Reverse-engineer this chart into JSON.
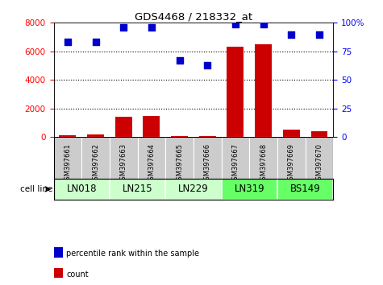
{
  "title": "GDS4468 / 218332_at",
  "samples": [
    "GSM397661",
    "GSM397662",
    "GSM397663",
    "GSM397664",
    "GSM397665",
    "GSM397666",
    "GSM397667",
    "GSM397668",
    "GSM397669",
    "GSM397670"
  ],
  "counts": [
    150,
    200,
    1450,
    1480,
    100,
    80,
    6350,
    6500,
    550,
    430
  ],
  "percentile_ranks": [
    83,
    83,
    96,
    96,
    67,
    63,
    99,
    99,
    90,
    90
  ],
  "cell_lines": [
    {
      "name": "LN018",
      "samples": [
        0,
        1
      ],
      "color": "#ccffcc"
    },
    {
      "name": "LN215",
      "samples": [
        2,
        3
      ],
      "color": "#ccffcc"
    },
    {
      "name": "LN229",
      "samples": [
        4,
        5
      ],
      "color": "#ccffcc"
    },
    {
      "name": "LN319",
      "samples": [
        6,
        7
      ],
      "color": "#66ff66"
    },
    {
      "name": "BS149",
      "samples": [
        8,
        9
      ],
      "color": "#66ff66"
    }
  ],
  "bar_color": "#cc0000",
  "dot_color": "#0000cc",
  "left_ylim": [
    0,
    8000
  ],
  "right_ylim": [
    0,
    100
  ],
  "left_yticks": [
    0,
    2000,
    4000,
    6000,
    8000
  ],
  "right_yticks": [
    0,
    25,
    50,
    75,
    100
  ],
  "right_yticklabels": [
    "0",
    "25",
    "50",
    "75",
    "100%"
  ],
  "background_color": "#ffffff",
  "sample_bg_color": "#cccccc",
  "dotted_lines": [
    2000,
    4000,
    6000
  ],
  "legend_items": [
    {
      "label": "count",
      "color": "#cc0000"
    },
    {
      "label": "percentile rank within the sample",
      "color": "#0000cc"
    }
  ]
}
